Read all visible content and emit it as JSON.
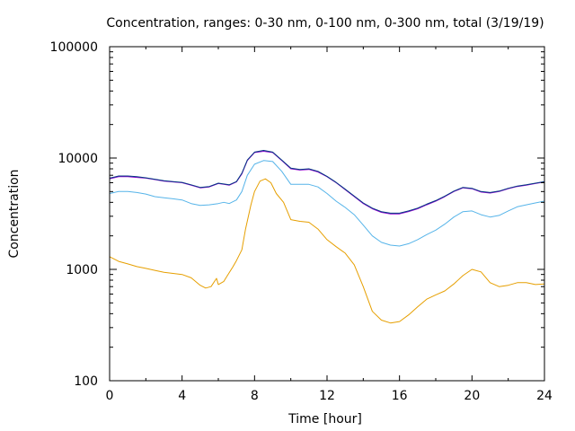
{
  "chart_data": {
    "type": "line",
    "title": "Concentration, ranges: 0-30 nm, 0-100 nm, 0-300 nm, total (3/19/19)",
    "xlabel": "Time [hour]",
    "ylabel": "Concentration",
    "xlim": [
      0,
      24
    ],
    "ylim": [
      100,
      100000
    ],
    "yscale": "log",
    "x_ticks": [
      0,
      4,
      8,
      12,
      16,
      20,
      24
    ],
    "x_tick_labels": [
      "0",
      "4",
      "8",
      "12",
      "16",
      "20",
      "24"
    ],
    "y_ticks": [
      100,
      1000,
      10000,
      100000
    ],
    "y_tick_labels": [
      "100",
      "1000",
      "10000",
      "100000"
    ],
    "grid": false,
    "legend": "none",
    "series": [
      {
        "color": "#e69f00",
        "points": [
          [
            0,
            1300
          ],
          [
            0.5,
            1180
          ],
          [
            1,
            1120
          ],
          [
            1.5,
            1060
          ],
          [
            2,
            1020
          ],
          [
            2.5,
            980
          ],
          [
            3,
            940
          ],
          [
            3.5,
            920
          ],
          [
            4,
            900
          ],
          [
            4.5,
            840
          ],
          [
            5,
            720
          ],
          [
            5.3,
            680
          ],
          [
            5.6,
            700
          ],
          [
            5.9,
            830
          ],
          [
            6.0,
            730
          ],
          [
            6.3,
            780
          ],
          [
            6.5,
            880
          ],
          [
            6.8,
            1050
          ],
          [
            7,
            1200
          ],
          [
            7.3,
            1500
          ],
          [
            7.5,
            2300
          ],
          [
            7.8,
            3800
          ],
          [
            8,
            5000
          ],
          [
            8.3,
            6200
          ],
          [
            8.6,
            6500
          ],
          [
            8.9,
            6000
          ],
          [
            9.2,
            4800
          ],
          [
            9.6,
            4000
          ],
          [
            10,
            2800
          ],
          [
            10.5,
            2700
          ],
          [
            11,
            2650
          ],
          [
            11.5,
            2300
          ],
          [
            12,
            1850
          ],
          [
            12.5,
            1600
          ],
          [
            13,
            1400
          ],
          [
            13.5,
            1100
          ],
          [
            14,
            700
          ],
          [
            14.5,
            420
          ],
          [
            15,
            350
          ],
          [
            15.5,
            330
          ],
          [
            16,
            340
          ],
          [
            16.5,
            390
          ],
          [
            17,
            460
          ],
          [
            17.5,
            540
          ],
          [
            18,
            590
          ],
          [
            18.5,
            640
          ],
          [
            19,
            740
          ],
          [
            19.5,
            880
          ],
          [
            20,
            1000
          ],
          [
            20.5,
            950
          ],
          [
            21,
            760
          ],
          [
            21.5,
            700
          ],
          [
            22,
            720
          ],
          [
            22.5,
            760
          ],
          [
            23,
            760
          ],
          [
            23.5,
            730
          ],
          [
            24,
            740
          ]
        ]
      },
      {
        "color": "#56b4e9",
        "points": [
          [
            0,
            4800
          ],
          [
            0.5,
            5000
          ],
          [
            1,
            5000
          ],
          [
            1.5,
            4900
          ],
          [
            2,
            4750
          ],
          [
            2.5,
            4500
          ],
          [
            3,
            4400
          ],
          [
            3.5,
            4300
          ],
          [
            4,
            4200
          ],
          [
            4.5,
            3900
          ],
          [
            5,
            3750
          ],
          [
            5.5,
            3800
          ],
          [
            6,
            3900
          ],
          [
            6.3,
            4000
          ],
          [
            6.6,
            3900
          ],
          [
            7,
            4200
          ],
          [
            7.3,
            5000
          ],
          [
            7.6,
            7000
          ],
          [
            8,
            8800
          ],
          [
            8.5,
            9500
          ],
          [
            9,
            9300
          ],
          [
            9.5,
            7600
          ],
          [
            10,
            5800
          ],
          [
            10.5,
            5800
          ],
          [
            11,
            5800
          ],
          [
            11.5,
            5500
          ],
          [
            12,
            4800
          ],
          [
            12.5,
            4100
          ],
          [
            13,
            3600
          ],
          [
            13.5,
            3100
          ],
          [
            14,
            2500
          ],
          [
            14.5,
            2000
          ],
          [
            15,
            1750
          ],
          [
            15.5,
            1650
          ],
          [
            16,
            1620
          ],
          [
            16.5,
            1700
          ],
          [
            17,
            1850
          ],
          [
            17.5,
            2050
          ],
          [
            18,
            2250
          ],
          [
            18.5,
            2550
          ],
          [
            19,
            2950
          ],
          [
            19.5,
            3300
          ],
          [
            20,
            3350
          ],
          [
            20.5,
            3100
          ],
          [
            21,
            2950
          ],
          [
            21.5,
            3050
          ],
          [
            22,
            3350
          ],
          [
            22.5,
            3650
          ],
          [
            23,
            3800
          ],
          [
            23.5,
            3950
          ],
          [
            24,
            4100
          ]
        ]
      },
      {
        "color": "#9400d3",
        "points": [
          [
            0,
            6500
          ],
          [
            0.5,
            6800
          ],
          [
            1,
            6800
          ],
          [
            1.5,
            6700
          ],
          [
            2,
            6600
          ],
          [
            2.5,
            6400
          ],
          [
            3,
            6200
          ],
          [
            3.5,
            6100
          ],
          [
            4,
            6000
          ],
          [
            4.5,
            5700
          ],
          [
            5,
            5400
          ],
          [
            5.5,
            5500
          ],
          [
            6,
            5900
          ],
          [
            6.3,
            5800
          ],
          [
            6.6,
            5700
          ],
          [
            7,
            6100
          ],
          [
            7.3,
            7200
          ],
          [
            7.6,
            9500
          ],
          [
            8,
            11200
          ],
          [
            8.5,
            11500
          ],
          [
            9,
            11200
          ],
          [
            9.5,
            9500
          ],
          [
            10,
            8000
          ],
          [
            10.5,
            7800
          ],
          [
            11,
            7900
          ],
          [
            11.5,
            7500
          ],
          [
            12,
            6800
          ],
          [
            12.5,
            6000
          ],
          [
            13,
            5200
          ],
          [
            13.5,
            4500
          ],
          [
            14,
            3900
          ],
          [
            14.5,
            3500
          ],
          [
            15,
            3250
          ],
          [
            15.5,
            3150
          ],
          [
            16,
            3150
          ],
          [
            16.5,
            3300
          ],
          [
            17,
            3500
          ],
          [
            17.5,
            3800
          ],
          [
            18,
            4100
          ],
          [
            18.5,
            4500
          ],
          [
            19,
            5000
          ],
          [
            19.5,
            5400
          ],
          [
            20,
            5300
          ],
          [
            20.5,
            4950
          ],
          [
            21,
            4850
          ],
          [
            21.5,
            5000
          ],
          [
            22,
            5300
          ],
          [
            22.5,
            5550
          ],
          [
            23,
            5700
          ],
          [
            23.5,
            5900
          ],
          [
            24,
            6100
          ]
        ]
      },
      {
        "color": "#003a80",
        "points": [
          [
            0,
            6600
          ],
          [
            0.5,
            6900
          ],
          [
            1,
            6900
          ],
          [
            1.5,
            6800
          ],
          [
            2,
            6650
          ],
          [
            2.5,
            6450
          ],
          [
            3,
            6250
          ],
          [
            3.5,
            6150
          ],
          [
            4,
            6050
          ],
          [
            4.5,
            5750
          ],
          [
            5,
            5450
          ],
          [
            5.5,
            5550
          ],
          [
            6,
            5950
          ],
          [
            6.3,
            5850
          ],
          [
            6.6,
            5750
          ],
          [
            7,
            6150
          ],
          [
            7.3,
            7300
          ],
          [
            7.6,
            9600
          ],
          [
            8,
            11300
          ],
          [
            8.5,
            11700
          ],
          [
            9,
            11300
          ],
          [
            9.5,
            9600
          ],
          [
            10,
            8100
          ],
          [
            10.5,
            7900
          ],
          [
            11,
            8000
          ],
          [
            11.5,
            7600
          ],
          [
            12,
            6850
          ],
          [
            12.5,
            6050
          ],
          [
            13,
            5250
          ],
          [
            13.5,
            4550
          ],
          [
            14,
            3950
          ],
          [
            14.5,
            3550
          ],
          [
            15,
            3300
          ],
          [
            15.5,
            3200
          ],
          [
            16,
            3200
          ],
          [
            16.5,
            3350
          ],
          [
            17,
            3550
          ],
          [
            17.5,
            3850
          ],
          [
            18,
            4150
          ],
          [
            18.5,
            4550
          ],
          [
            19,
            5050
          ],
          [
            19.5,
            5450
          ],
          [
            20,
            5350
          ],
          [
            20.5,
            5000
          ],
          [
            21,
            4900
          ],
          [
            21.5,
            5050
          ],
          [
            22,
            5350
          ],
          [
            22.5,
            5600
          ],
          [
            23,
            5750
          ],
          [
            23.5,
            5950
          ],
          [
            24,
            6150
          ]
        ]
      }
    ]
  }
}
